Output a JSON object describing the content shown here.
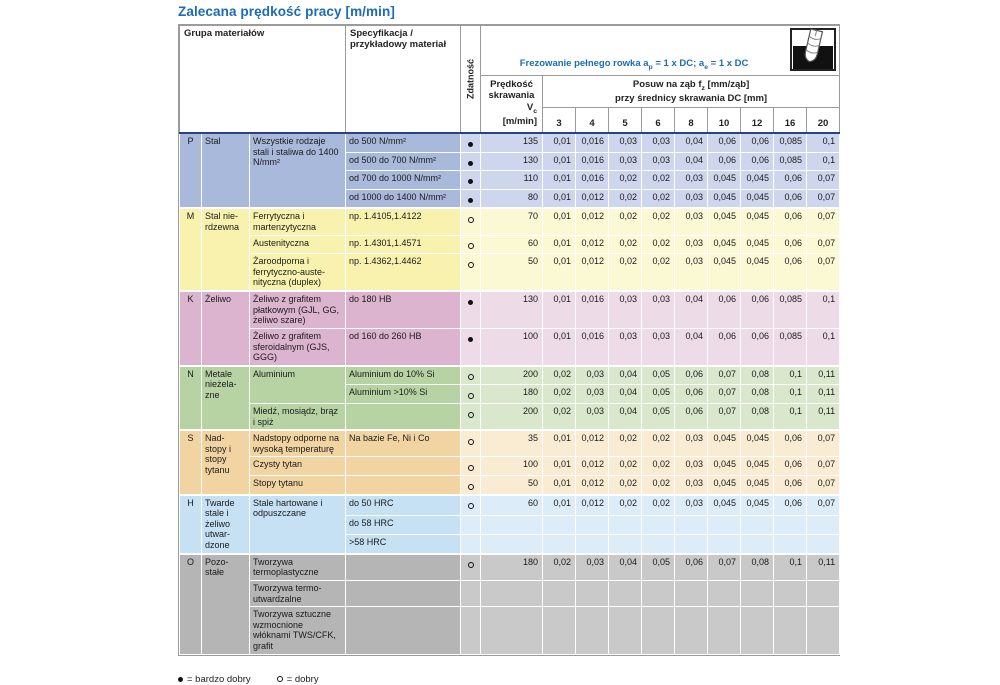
{
  "title": "Zalecana prędkość pracy [m/min]",
  "colors": {
    "accent_blue": "#1b6cb5",
    "header_rule_navy": "#26428b",
    "grid_gray": "#9b9b9b"
  },
  "header": {
    "group_col": "Grupa materiałów",
    "spec_col": "Specyfikacja / przykładowy materiał",
    "suitability_col": "Zdatność",
    "operation": {
      "t1": "Frezowanie pełnego rowka a",
      "sub1": "p",
      "t2": " = 1 x DC; a",
      "sub2": "e",
      "t3": " = 1 x DC"
    },
    "speed": {
      "l1": "Prędkość",
      "l2": "skrawania",
      "sym": "V",
      "sym_sub": "c",
      "unit": "[m/min]"
    },
    "feed": {
      "t1": "Posuw na ząb f",
      "sub": "z",
      "t2": " [mm/ząb]",
      "l2": "przy średnicy skrawania DC [mm]"
    },
    "diameters": [
      "3",
      "4",
      "5",
      "6",
      "8",
      "10",
      "12",
      "16",
      "20"
    ]
  },
  "legend": [
    {
      "symbol": "filled",
      "label": "= bardzo dobry"
    },
    {
      "symbol": "open",
      "label": "= dobry"
    }
  ],
  "sections": [
    {
      "letter": "P",
      "group": "Stal",
      "color_main": "#a9b9dc",
      "color_light": "#cdd6ec",
      "subgroups": [
        {
          "name": "Wszystkie rodzaje stali i staliwa do 1400 N/mm²",
          "rows": [
            {
              "spec": "do 500 N/mm²",
              "suit": "filled",
              "vc": "135",
              "feeds": [
                "0,01",
                "0,016",
                "0,03",
                "0,03",
                "0,04",
                "0,06",
                "0,06",
                "0,085",
                "0,1"
              ]
            },
            {
              "spec": "od 500 do 700 N/mm²",
              "suit": "filled",
              "vc": "130",
              "feeds": [
                "0,01",
                "0,016",
                "0,03",
                "0,03",
                "0,04",
                "0,06",
                "0,06",
                "0,085",
                "0,1"
              ]
            },
            {
              "spec": "od 700 do 1000 N/mm²",
              "suit": "filled",
              "vc": "110",
              "feeds": [
                "0,01",
                "0,016",
                "0,02",
                "0,02",
                "0,03",
                "0,045",
                "0,045",
                "0,06",
                "0,07"
              ]
            },
            {
              "spec": "od 1000 do 1400 N/mm²",
              "suit": "filled",
              "vc": "80",
              "feeds": [
                "0,01",
                "0,012",
                "0,02",
                "0,02",
                "0,03",
                "0,045",
                "0,045",
                "0,06",
                "0,07"
              ]
            }
          ]
        }
      ]
    },
    {
      "letter": "M",
      "group": "Stal nie-rdzewna",
      "color_main": "#f8f2ae",
      "color_light": "#fbf8d4",
      "subgroups": [
        {
          "name": "Ferrytyczna i martenzytyczna",
          "rows": [
            {
              "spec": "np. 1.4105,1.4122",
              "suit": "open",
              "vc": "70",
              "feeds": [
                "0,01",
                "0,012",
                "0,02",
                "0,02",
                "0,03",
                "0,045",
                "0,045",
                "0,06",
                "0,07"
              ]
            }
          ]
        },
        {
          "name": "Austenityczna",
          "rows": [
            {
              "spec": "np. 1.4301,1.4571",
              "suit": "open",
              "vc": "60",
              "feeds": [
                "0,01",
                "0,012",
                "0,02",
                "0,02",
                "0,03",
                "0,045",
                "0,045",
                "0,06",
                "0,07"
              ]
            }
          ]
        },
        {
          "name": "Żaroodporna i ferrytyczno-auste-nityczna (duplex)",
          "rows": [
            {
              "spec": "np. 1.4362,1.4462",
              "suit": "open",
              "vc": "50",
              "feeds": [
                "0,01",
                "0,012",
                "0,02",
                "0,02",
                "0,03",
                "0,045",
                "0,045",
                "0,06",
                "0,07"
              ]
            }
          ]
        }
      ]
    },
    {
      "letter": "K",
      "group": "Żeliwo",
      "color_main": "#dcb4cf",
      "color_light": "#eddbe7",
      "subgroups": [
        {
          "name": "Żeliwo z grafitem płatkowym (GJL, GG, żeliwo szare)",
          "rows": [
            {
              "spec": "do 180 HB",
              "suit": "filled",
              "vc": "130",
              "feeds": [
                "0,01",
                "0,016",
                "0,03",
                "0,03",
                "0,04",
                "0,06",
                "0,06",
                "0,085",
                "0,1"
              ]
            }
          ]
        },
        {
          "name": "Żeliwo z grafitem sferoidalnym (GJS, GGG)",
          "rows": [
            {
              "spec": "od 160 do 260 HB",
              "suit": "filled",
              "vc": "100",
              "feeds": [
                "0,01",
                "0,016",
                "0,03",
                "0,03",
                "0,04",
                "0,06",
                "0,06",
                "0,085",
                "0,1"
              ]
            }
          ]
        }
      ]
    },
    {
      "letter": "N",
      "group": "Metale nieżela-zne",
      "color_main": "#b7d3a4",
      "color_light": "#d9e8cc",
      "subgroups": [
        {
          "name": "Aluminium",
          "rows": [
            {
              "spec": "Aluminium do 10% Si",
              "suit": "open",
              "vc": "200",
              "feeds": [
                "0,02",
                "0,03",
                "0,04",
                "0,05",
                "0,06",
                "0,07",
                "0,08",
                "0,1",
                "0,11"
              ]
            },
            {
              "spec": "Aluminium >10% Si",
              "suit": "open",
              "vc": "180",
              "feeds": [
                "0,02",
                "0,03",
                "0,04",
                "0,05",
                "0,06",
                "0,07",
                "0,08",
                "0,1",
                "0,11"
              ]
            }
          ]
        },
        {
          "name": "Miedź, mosiądz, brąz i spiż",
          "rows": [
            {
              "spec": "",
              "suit": "open",
              "vc": "200",
              "feeds": [
                "0,02",
                "0,03",
                "0,04",
                "0,05",
                "0,06",
                "0,07",
                "0,08",
                "0,1",
                "0,11"
              ]
            }
          ]
        }
      ]
    },
    {
      "letter": "S",
      "group": "Nad-stopy i stopy tytanu",
      "color_main": "#f2d4a3",
      "color_light": "#f9ecd3",
      "subgroups": [
        {
          "name": "Nadstopy odporne na wysoką temperaturę",
          "rows": [
            {
              "spec": "Na bazie Fe, Ni i Co",
              "suit": "open",
              "vc": "35",
              "feeds": [
                "0,01",
                "0,012",
                "0,02",
                "0,02",
                "0,03",
                "0,045",
                "0,045",
                "0,06",
                "0,07"
              ]
            }
          ]
        },
        {
          "name": "Czysty tytan",
          "rows": [
            {
              "spec": "",
              "suit": "open",
              "vc": "100",
              "feeds": [
                "0,01",
                "0,012",
                "0,02",
                "0,02",
                "0,03",
                "0,045",
                "0,045",
                "0,06",
                "0,07"
              ]
            }
          ]
        },
        {
          "name": "Stopy tytanu",
          "rows": [
            {
              "spec": "",
              "suit": "open",
              "vc": "50",
              "feeds": [
                "0,01",
                "0,012",
                "0,02",
                "0,02",
                "0,03",
                "0,045",
                "0,045",
                "0,06",
                "0,07"
              ]
            }
          ]
        }
      ]
    },
    {
      "letter": "H",
      "group": "Twarde stale i żeliwo utwar-dzone",
      "color_main": "#c5e1f3",
      "color_light": "#dcedf9",
      "subgroups": [
        {
          "name": "Stale hartowane i odpuszczane",
          "rows": [
            {
              "spec": "do 50 HRC",
              "suit": "open",
              "vc": "60",
              "feeds": [
                "0,01",
                "0,012",
                "0,02",
                "0,02",
                "0,03",
                "0,045",
                "0,045",
                "0,06",
                "0,07"
              ]
            },
            {
              "spec": "do 58 HRC",
              "suit": "",
              "vc": "",
              "feeds": [
                "",
                "",
                "",
                "",
                "",
                "",
                "",
                "",
                ""
              ]
            },
            {
              "spec": ">58 HRC",
              "suit": "",
              "vc": "",
              "feeds": [
                "",
                "",
                "",
                "",
                "",
                "",
                "",
                "",
                ""
              ]
            }
          ]
        }
      ]
    },
    {
      "letter": "O",
      "group": "Pozo-stałe",
      "color_main": "#b5b5b5",
      "color_light": "#c9c9c9",
      "subgroups": [
        {
          "name": "Tworzywa termoplastyczne",
          "rows": [
            {
              "spec": "",
              "suit": "open",
              "vc": "180",
              "feeds": [
                "0,02",
                "0,03",
                "0,04",
                "0,05",
                "0,06",
                "0,07",
                "0,08",
                "0,1",
                "0,11"
              ]
            }
          ]
        },
        {
          "name": "Tworzywa termo-utwardzalne",
          "rows": [
            {
              "spec": "",
              "suit": "",
              "vc": "",
              "feeds": [
                "",
                "",
                "",
                "",
                "",
                "",
                "",
                "",
                ""
              ]
            }
          ]
        },
        {
          "name": "Tworzywa sztuczne wzmocnione włóknami TWS/CFK, grafit",
          "rows": [
            {
              "spec": "",
              "suit": "",
              "vc": "",
              "feeds": [
                "",
                "",
                "",
                "",
                "",
                "",
                "",
                "",
                ""
              ]
            }
          ]
        }
      ]
    }
  ]
}
